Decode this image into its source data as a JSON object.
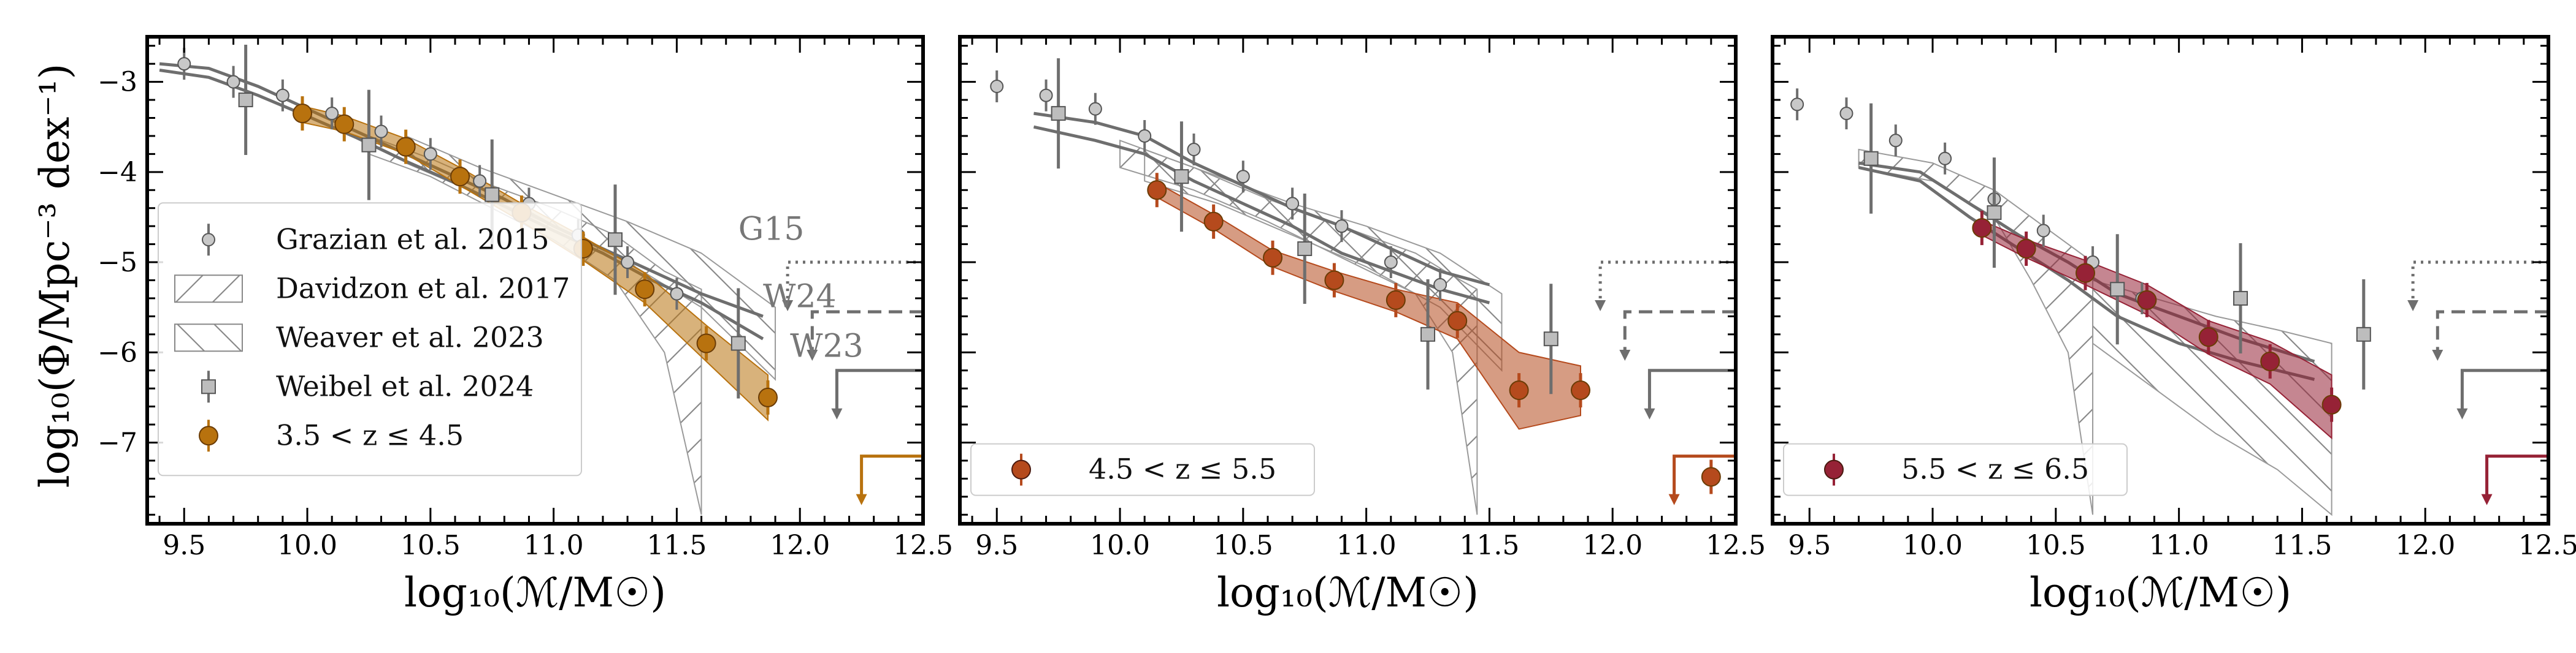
{
  "figure": {
    "ylabel": "log₁₀(Φ/Mpc⁻³ dex⁻¹)",
    "xlabel": "log₁₀(ℳ/M☉)"
  },
  "axes": {
    "xlim": [
      9.35,
      12.5
    ],
    "ylim": [
      -7.9,
      -2.5
    ],
    "xticks": [
      9.5,
      10.0,
      10.5,
      11.0,
      11.5,
      12.0,
      12.5
    ],
    "yticks": [
      -3,
      -4,
      -5,
      -6,
      -7
    ]
  },
  "legend_labels": {
    "grazian": "Grazian et al. 2015",
    "davidzon": "Davidzon et al. 2017",
    "weaver": "Weaver et al. 2023",
    "weibel": "Weibel et al. 2024"
  },
  "annotations": {
    "g15": "G15",
    "w24": "W24",
    "w23": "W23"
  },
  "colors": {
    "panel1": "#b8720e",
    "panel2": "#b54a1d",
    "panel3": "#962236",
    "literature": "#6e6e6e"
  },
  "chart_data": [
    {
      "type": "scatter",
      "redshift_label": "3.5 < z ≤ 4.5",
      "this_work": {
        "x": [
          9.98,
          10.15,
          10.4,
          10.62,
          10.87,
          11.12,
          11.37,
          11.62,
          11.87
        ],
        "y": [
          -3.35,
          -3.47,
          -3.72,
          -4.05,
          -4.45,
          -4.85,
          -5.3,
          -5.9,
          -6.5
        ],
        "band_lower": [
          -3.45,
          -3.55,
          -3.8,
          -4.15,
          -4.55,
          -4.98,
          -5.45,
          -6.1,
          -6.75
        ],
        "band_upper": [
          -3.27,
          -3.38,
          -3.63,
          -3.95,
          -4.35,
          -4.72,
          -5.12,
          -5.7,
          -6.25
        ]
      },
      "grazian": {
        "x": [
          9.5,
          9.7,
          9.9,
          10.1,
          10.3,
          10.5,
          10.7,
          10.9,
          11.1,
          11.3,
          11.5
        ],
        "y": [
          -2.8,
          -3.0,
          -3.15,
          -3.35,
          -3.55,
          -3.8,
          -4.1,
          -4.35,
          -4.7,
          -5.0,
          -5.35
        ]
      },
      "weibel": {
        "x": [
          9.75,
          10.25,
          10.75,
          11.25,
          11.75
        ],
        "y": [
          -3.2,
          -3.7,
          -4.25,
          -4.75,
          -5.9
        ]
      },
      "weibel_upper_limit": {
        "x": 12.25,
        "y": -7.55
      },
      "literature_lines": [
        {
          "name": "G15",
          "x": [
            9.4,
            9.6,
            9.8,
            10.0,
            10.2,
            10.4,
            10.6,
            10.8,
            11.0,
            11.2,
            11.4,
            11.6,
            11.85
          ],
          "y": [
            -2.8,
            -2.85,
            -3.05,
            -3.3,
            -3.55,
            -3.8,
            -4.05,
            -4.3,
            -4.6,
            -4.85,
            -5.1,
            -5.35,
            -5.6
          ]
        },
        {
          "name": "W24",
          "x": [
            9.4,
            9.6,
            9.8,
            10.0,
            10.2,
            10.4,
            10.6,
            10.8,
            11.0,
            11.2,
            11.4,
            11.6,
            11.85
          ],
          "y": [
            -2.87,
            -2.95,
            -3.15,
            -3.38,
            -3.62,
            -3.88,
            -4.12,
            -4.38,
            -4.65,
            -4.9,
            -5.2,
            -5.45,
            -5.85
          ]
        }
      ],
      "hatch_bands": [
        {
          "name": "Davidzon",
          "x": [
            10.25,
            10.5,
            10.75,
            11.0,
            11.25,
            11.45,
            11.6
          ],
          "lower": [
            -3.8,
            -4.05,
            -4.4,
            -4.75,
            -5.2,
            -6.0,
            -7.8
          ],
          "upper": [
            -3.6,
            -3.85,
            -4.15,
            -4.4,
            -4.7,
            -5.1,
            -5.3
          ]
        },
        {
          "name": "Weaver",
          "x": [
            10.4,
            10.7,
            11.0,
            11.3,
            11.6,
            11.9
          ],
          "lower": [
            -3.9,
            -4.25,
            -4.6,
            -5.0,
            -5.5,
            -6.3
          ],
          "upper": [
            -3.6,
            -3.95,
            -4.25,
            -4.55,
            -4.9,
            -5.5
          ]
        }
      ]
    },
    {
      "type": "scatter",
      "redshift_label": "4.5 < z ≤ 5.5",
      "this_work": {
        "x": [
          10.15,
          10.38,
          10.62,
          10.87,
          11.12,
          11.37,
          11.62,
          11.87,
          12.4
        ],
        "y": [
          -4.2,
          -4.55,
          -4.95,
          -5.2,
          -5.42,
          -5.65,
          -6.42,
          -6.42,
          -7.38
        ],
        "band_lower": [
          -4.28,
          -4.63,
          -5.05,
          -5.32,
          -5.55,
          -5.85,
          -6.85,
          -6.7
        ],
        "band_upper": [
          -4.12,
          -4.47,
          -4.87,
          -5.1,
          -5.3,
          -5.45,
          -6.0,
          -6.15
        ]
      },
      "grazian": {
        "x": [
          9.5,
          9.7,
          9.9,
          10.1,
          10.3,
          10.5,
          10.7,
          10.9,
          11.1,
          11.3
        ],
        "y": [
          -3.05,
          -3.15,
          -3.3,
          -3.6,
          -3.75,
          -4.05,
          -4.35,
          -4.6,
          -5.0,
          -5.25
        ]
      },
      "weibel": {
        "x": [
          9.75,
          10.25,
          10.75,
          11.25,
          11.75
        ],
        "y": [
          -3.35,
          -4.05,
          -4.85,
          -5.8,
          -5.85
        ]
      },
      "weibel_upper_limit": {
        "x": 12.25,
        "y": -7.55
      },
      "literature_lines": [
        {
          "name": "G15",
          "x": [
            9.65,
            9.9,
            10.1,
            10.3,
            10.5,
            10.7,
            10.9,
            11.1,
            11.3,
            11.5
          ],
          "y": [
            -3.35,
            -3.45,
            -3.6,
            -3.9,
            -4.15,
            -4.4,
            -4.6,
            -4.85,
            -5.1,
            -5.25
          ]
        },
        {
          "name": "W24",
          "x": [
            9.65,
            9.9,
            10.1,
            10.3,
            10.5,
            10.7,
            10.9,
            11.1,
            11.3,
            11.5
          ],
          "y": [
            -3.5,
            -3.65,
            -3.8,
            -4.1,
            -4.35,
            -4.6,
            -4.9,
            -5.1,
            -5.3,
            -5.45
          ]
        }
      ],
      "hatch_bands": [
        {
          "name": "Davidzon",
          "x": [
            10.0,
            10.3,
            10.6,
            10.9,
            11.2,
            11.35,
            11.45
          ],
          "lower": [
            -3.95,
            -4.2,
            -4.55,
            -4.95,
            -5.35,
            -6.0,
            -7.8
          ],
          "upper": [
            -3.65,
            -3.95,
            -4.3,
            -4.6,
            -4.9,
            -5.15,
            -5.3
          ]
        },
        {
          "name": "Weaver",
          "x": [
            10.1,
            10.4,
            10.7,
            11.0,
            11.3,
            11.55
          ],
          "lower": [
            -4.1,
            -4.35,
            -4.7,
            -5.05,
            -5.5,
            -6.2
          ],
          "upper": [
            -3.75,
            -4.05,
            -4.35,
            -4.6,
            -4.9,
            -5.35
          ]
        }
      ]
    },
    {
      "type": "scatter",
      "redshift_label": "5.5 < z ≤ 6.5",
      "this_work": {
        "x": [
          10.2,
          10.38,
          10.62,
          10.87,
          11.12,
          11.37,
          11.62
        ],
        "y": [
          -4.62,
          -4.85,
          -5.12,
          -5.42,
          -5.83,
          -6.1,
          -6.58
        ],
        "band_lower": [
          -4.7,
          -4.95,
          -5.25,
          -5.58,
          -6.02,
          -6.35,
          -6.95
        ],
        "band_upper": [
          -4.54,
          -4.75,
          -4.98,
          -5.25,
          -5.65,
          -5.88,
          -6.25
        ]
      },
      "grazian": {
        "x": [
          9.45,
          9.65,
          9.85,
          10.05,
          10.25,
          10.45,
          10.65,
          10.85
        ],
        "y": [
          -3.25,
          -3.35,
          -3.65,
          -3.85,
          -4.3,
          -4.65,
          -5.0,
          -5.4
        ]
      },
      "weibel": {
        "x": [
          9.75,
          10.25,
          10.75,
          11.25,
          11.75
        ],
        "y": [
          -3.85,
          -4.45,
          -5.3,
          -5.4,
          -5.8
        ]
      },
      "weibel_upper_limit": {
        "x": 12.25,
        "y": -7.55
      },
      "literature_lines": [
        {
          "name": "G15",
          "x": [
            9.7,
            9.95,
            10.15,
            10.35,
            10.55,
            10.75,
            11.0,
            11.25,
            11.55
          ],
          "y": [
            -3.9,
            -4.0,
            -4.35,
            -4.7,
            -5.0,
            -5.35,
            -5.6,
            -5.85,
            -6.1
          ]
        },
        {
          "name": "W24",
          "x": [
            9.7,
            9.95,
            10.15,
            10.35,
            10.55,
            10.75,
            11.0,
            11.25,
            11.55
          ],
          "y": [
            -3.95,
            -4.1,
            -4.5,
            -4.85,
            -5.2,
            -5.6,
            -5.9,
            -6.1,
            -6.3
          ]
        }
      ],
      "hatch_bands": [
        {
          "name": "Davidzon",
          "x": [
            9.7,
            10.0,
            10.25,
            10.4,
            10.55,
            10.65
          ],
          "lower": [
            -3.95,
            -4.1,
            -4.5,
            -5.2,
            -6.0,
            -7.8
          ],
          "upper": [
            -3.75,
            -3.9,
            -4.2,
            -4.5,
            -4.8,
            -5.0
          ]
        },
        {
          "name": "Weaver",
          "x": [
            10.65,
            10.9,
            11.15,
            11.4,
            11.62
          ],
          "lower": [
            -5.9,
            -6.4,
            -6.9,
            -7.3,
            -7.8
          ],
          "upper": [
            -5.2,
            -5.4,
            -5.6,
            -5.75,
            -5.9
          ]
        }
      ]
    }
  ]
}
